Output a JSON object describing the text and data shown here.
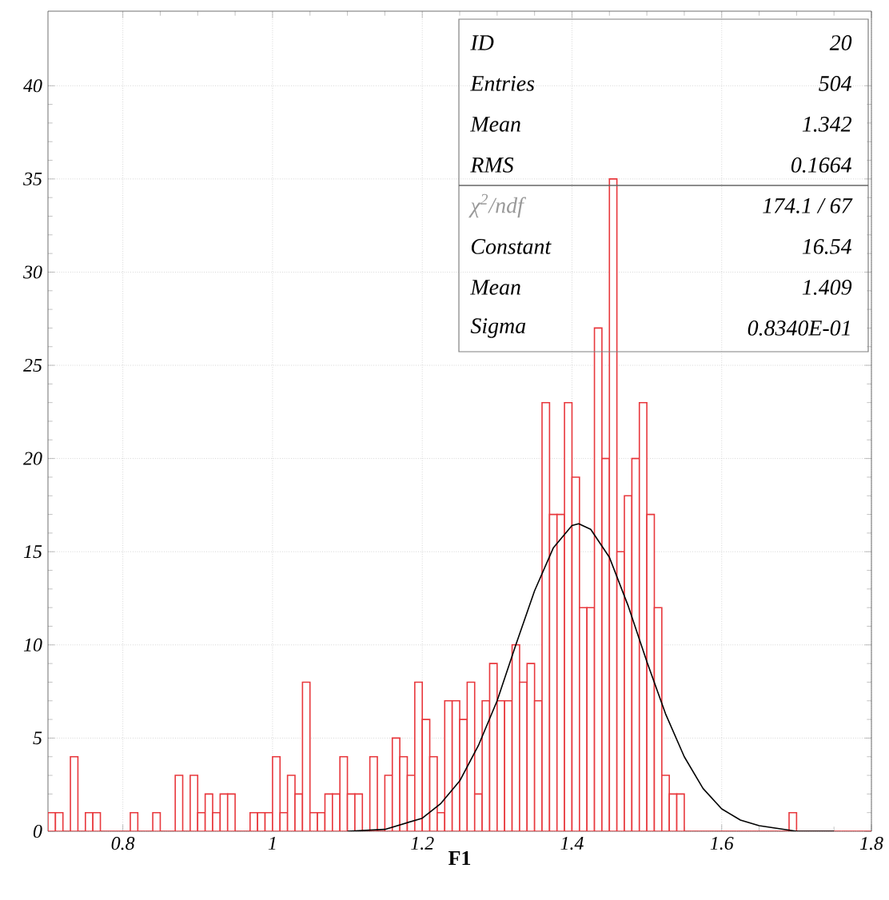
{
  "chart_data": {
    "type": "histogram",
    "xlabel": "F1",
    "color": "#e8383d",
    "bins": [
      0.7,
      0.71,
      0.72,
      0.73,
      0.74,
      0.75,
      0.76,
      0.77,
      0.78,
      0.79,
      0.8,
      0.81,
      0.82,
      0.83,
      0.84,
      0.85,
      0.86,
      0.87,
      0.88,
      0.89,
      0.9,
      0.91,
      0.92,
      0.93,
      0.94,
      0.95,
      0.96,
      0.97,
      0.98,
      0.99,
      1.0,
      1.01,
      1.02,
      1.03,
      1.04,
      1.05,
      1.06,
      1.07,
      1.08,
      1.09,
      1.1,
      1.11,
      1.12,
      1.13,
      1.14,
      1.15,
      1.16,
      1.17,
      1.18,
      1.19,
      1.2,
      1.21,
      1.22,
      1.23,
      1.24,
      1.25,
      1.26,
      1.27,
      1.28,
      1.29,
      1.3,
      1.31,
      1.32,
      1.33,
      1.34,
      1.35,
      1.36,
      1.37,
      1.38,
      1.39,
      1.4,
      1.41,
      1.42,
      1.43,
      1.44,
      1.45,
      1.46,
      1.47,
      1.48,
      1.49,
      1.5,
      1.51,
      1.52,
      1.53,
      1.54,
      1.55,
      1.56,
      1.57,
      1.58,
      1.59,
      1.6,
      1.61,
      1.62,
      1.63,
      1.64,
      1.65,
      1.66,
      1.67,
      1.68,
      1.69,
      1.7,
      1.71,
      1.72,
      1.73,
      1.74,
      1.75,
      1.76,
      1.77,
      1.78,
      1.79,
      1.8
    ],
    "values": [
      1,
      1,
      0,
      4,
      0,
      1,
      1,
      0,
      0,
      0,
      0,
      1,
      0,
      0,
      1,
      0,
      0,
      3,
      0,
      3,
      1,
      2,
      1,
      2,
      2,
      0,
      0,
      1,
      1,
      1,
      4,
      1,
      3,
      2,
      8,
      1,
      1,
      2,
      2,
      4,
      2,
      2,
      0,
      4,
      0,
      3,
      5,
      4,
      3,
      8,
      6,
      4,
      1,
      7,
      7,
      6,
      8,
      2,
      7,
      9,
      7,
      7,
      10,
      8,
      9,
      7,
      23,
      17,
      17,
      23,
      19,
      12,
      12,
      27,
      20,
      35,
      15,
      18,
      20,
      23,
      17,
      12,
      3,
      2,
      2,
      0,
      0,
      0,
      0,
      0,
      0,
      0,
      0,
      0,
      0,
      0,
      0,
      0,
      0,
      1,
      0,
      0,
      0,
      0,
      0,
      0,
      0,
      0,
      0,
      0
    ],
    "series": [
      {
        "type": "line",
        "color": "#000000",
        "x": [
          1.1,
          1.15,
          1.2,
          1.225,
          1.25,
          1.275,
          1.3,
          1.325,
          1.35,
          1.375,
          1.4,
          1.409,
          1.425,
          1.45,
          1.475,
          1.5,
          1.525,
          1.55,
          1.575,
          1.6,
          1.625,
          1.65,
          1.7,
          1.75
        ],
        "values": [
          0,
          0.1,
          0.7,
          1.5,
          2.7,
          4.6,
          7,
          10,
          12.9,
          15.2,
          16.4,
          16.5,
          16.2,
          14.7,
          12.1,
          9.1,
          6.3,
          4,
          2.3,
          1.2,
          0.6,
          0.3,
          0,
          0
        ]
      }
    ],
    "xlim": [
      0.7,
      1.8
    ],
    "ylim": [
      0,
      44
    ],
    "xticks": [
      0.8,
      1,
      1.2,
      1.4,
      1.6,
      1.8
    ],
    "yticks": [
      0,
      5,
      10,
      15,
      20,
      25,
      30,
      35,
      40
    ],
    "grid": true,
    "annotations": [
      "ID",
      "20",
      "Entries",
      "504",
      "Mean",
      "1.342",
      "RMS",
      "0.1664",
      "χ$^{2}$/ndf",
      "174.1  /  67",
      "Constant",
      "16.54",
      "Mean",
      "1.409",
      "Sigma",
      "0.8340E-01"
    ]
  }
}
